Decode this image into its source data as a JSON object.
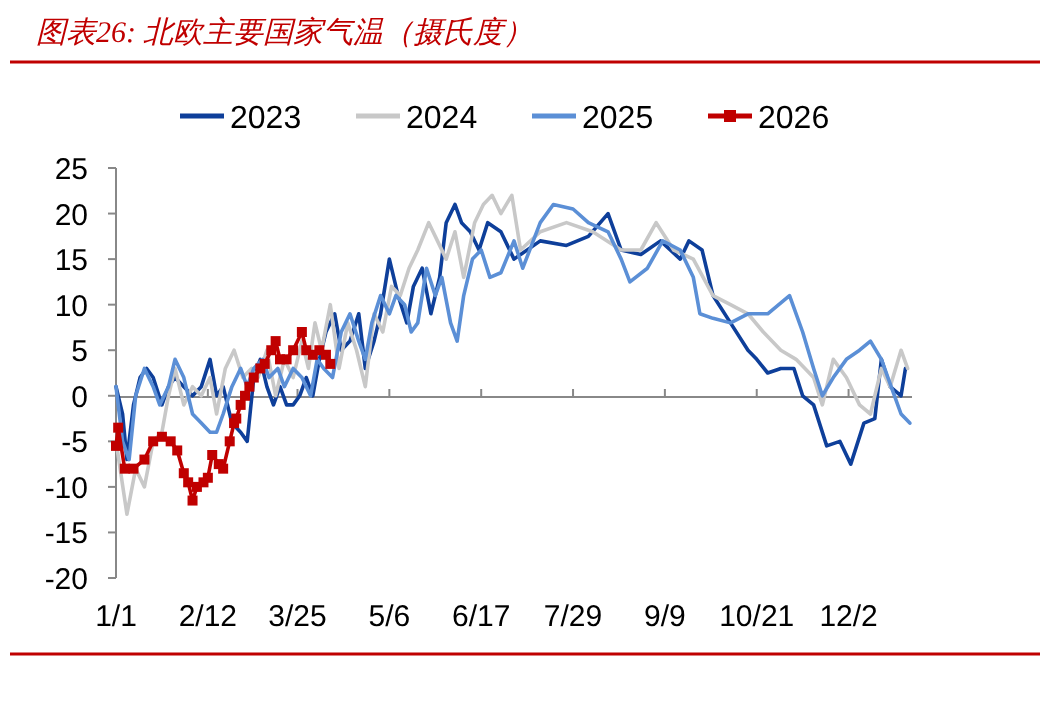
{
  "chart_data": {
    "type": "line",
    "title": "图表26: 北欧主要国家气温（摄氏度）",
    "xlim": [
      "--01-01",
      "--12-31"
    ],
    "xticks": [
      {
        "value": "--01-01",
        "label": "1/1"
      },
      {
        "value": "--02-12",
        "label": "2/12"
      },
      {
        "value": "--03-25",
        "label": "3/25"
      },
      {
        "value": "--05-06",
        "label": "5/6"
      },
      {
        "value": "--06-17",
        "label": "6/17"
      },
      {
        "value": "--07-29",
        "label": "7/29"
      },
      {
        "value": "--09-09",
        "label": "9/9"
      },
      {
        "value": "--10-21",
        "label": "10/21"
      },
      {
        "value": "--12-02",
        "label": "12/2"
      }
    ],
    "ylim": [
      -20,
      25
    ],
    "yticks": [
      -20,
      -15,
      -10,
      -5,
      0,
      5,
      10,
      15,
      20,
      25
    ],
    "legend": "top",
    "line_style": "solid",
    "series": [
      {
        "name": "2023",
        "color": "#0e3f9a",
        "marker": "none",
        "x": [
          "--01-01",
          "--01-04",
          "--01-06",
          "--01-09",
          "--01-12",
          "--01-15",
          "--01-18",
          "--01-22",
          "--01-25",
          "--01-28",
          "--02-01",
          "--02-05",
          "--02-09",
          "--02-13",
          "--02-16",
          "--02-19",
          "--02-23",
          "--02-27",
          "--03-02",
          "--03-05",
          "--03-08",
          "--03-11",
          "--03-14",
          "--03-17",
          "--03-20",
          "--03-23",
          "--03-26",
          "--03-29",
          "--04-01",
          "--04-04",
          "--04-07",
          "--04-11",
          "--04-14",
          "--04-18",
          "--04-22",
          "--04-25",
          "--04-29",
          "--05-02",
          "--05-06",
          "--05-10",
          "--05-14",
          "--05-17",
          "--05-21",
          "--05-25",
          "--05-29",
          "--06-01",
          "--06-05",
          "--06-08",
          "--06-12",
          "--06-16",
          "--06-20",
          "--06-26",
          "--07-02",
          "--07-14",
          "--07-26",
          "--08-05",
          "--08-14",
          "--08-20",
          "--08-29",
          "--09-07",
          "--09-16",
          "--09-20",
          "--09-26",
          "--10-01",
          "--10-09",
          "--10-17",
          "--10-21",
          "--10-26",
          "--11-01",
          "--11-07",
          "--11-11",
          "--11-16",
          "--11-22",
          "--11-28",
          "--12-03",
          "--12-09",
          "--12-14",
          "--12-17",
          "--12-21",
          "--12-26",
          "--12-28"
        ],
        "values": [
          1,
          -2,
          -7,
          -1,
          2,
          3,
          2,
          -1,
          1,
          2,
          1,
          0,
          1,
          4,
          0,
          1,
          -3,
          -4,
          -5,
          2,
          4,
          1,
          -1,
          1,
          -1,
          -1,
          0,
          2,
          0,
          4,
          7,
          9,
          5,
          6,
          9,
          3,
          6,
          9,
          15,
          11,
          8,
          12,
          14,
          9,
          13,
          19,
          21,
          19,
          18,
          16,
          19,
          18,
          15,
          17,
          16.5,
          17.5,
          20,
          16,
          15.5,
          17,
          15,
          17,
          16,
          11,
          8,
          5,
          4,
          2.5,
          3,
          3,
          0,
          -1,
          -5.5,
          -5,
          -7.5,
          -3,
          -2.5,
          4,
          1,
          0,
          3
        ]
      },
      {
        "name": "2024",
        "color": "#c8c8c8",
        "marker": "none",
        "x": [
          "--01-01",
          "--01-06",
          "--01-10",
          "--01-14",
          "--01-18",
          "--01-22",
          "--01-25",
          "--01-28",
          "--02-01",
          "--02-05",
          "--02-09",
          "--02-13",
          "--02-16",
          "--02-20",
          "--02-24",
          "--02-28",
          "--03-04",
          "--03-07",
          "--03-11",
          "--03-15",
          "--03-19",
          "--03-23",
          "--03-27",
          "--03-30",
          "--04-02",
          "--04-05",
          "--04-09",
          "--04-13",
          "--04-17",
          "--04-21",
          "--04-25",
          "--04-29",
          "--05-03",
          "--05-07",
          "--05-11",
          "--05-15",
          "--05-19",
          "--05-24",
          "--05-28",
          "--06-01",
          "--06-05",
          "--06-09",
          "--06-14",
          "--06-18",
          "--06-22",
          "--06-26",
          "--07-01",
          "--07-05",
          "--07-14",
          "--07-26",
          "--08-07",
          "--08-20",
          "--08-29",
          "--09-05",
          "--09-13",
          "--09-22",
          "--10-01",
          "--10-09",
          "--10-17",
          "--10-24",
          "--11-01",
          "--11-08",
          "--11-16",
          "--11-20",
          "--11-25",
          "--12-01",
          "--12-07",
          "--12-12",
          "--12-17",
          "--12-21",
          "--12-26",
          "--12-29"
        ],
        "values": [
          -5,
          -13,
          -8,
          -10,
          -5,
          -4,
          0,
          3,
          -1,
          1,
          0,
          2,
          -2,
          3,
          5,
          2,
          3,
          2,
          5,
          0,
          4,
          2,
          6,
          3,
          8,
          5,
          10,
          3,
          8,
          5,
          1,
          9,
          7,
          12,
          11,
          14,
          16,
          19,
          17,
          15,
          18,
          13,
          19,
          21,
          22,
          20,
          22,
          16,
          18,
          19,
          18,
          16,
          16,
          19,
          16,
          15,
          11,
          10,
          9,
          7,
          5,
          4,
          2,
          -1,
          4,
          2,
          -1,
          -2,
          3,
          1,
          5,
          3
        ]
      },
      {
        "name": "2025",
        "color": "#5b8fd6",
        "marker": "none",
        "x": [
          "--01-01",
          "--01-04",
          "--01-07",
          "--01-10",
          "--01-14",
          "--01-18",
          "--01-21",
          "--01-25",
          "--01-28",
          "--02-01",
          "--02-05",
          "--02-09",
          "--02-13",
          "--02-16",
          "--02-19",
          "--02-23",
          "--02-27",
          "--03-02",
          "--03-05",
          "--03-09",
          "--03-12",
          "--03-16",
          "--03-19",
          "--03-23",
          "--03-27",
          "--03-31",
          "--04-03",
          "--04-06",
          "--04-10",
          "--04-14",
          "--04-18",
          "--04-22",
          "--04-25",
          "--04-28",
          "--05-02",
          "--05-06",
          "--05-09",
          "--05-13",
          "--05-16",
          "--05-19",
          "--05-23",
          "--05-27",
          "--05-30",
          "--06-03",
          "--06-06",
          "--06-09",
          "--06-13",
          "--06-17",
          "--06-21",
          "--06-26",
          "--07-02",
          "--07-06",
          "--07-14",
          "--07-20",
          "--07-29",
          "--08-05",
          "--08-14",
          "--08-20",
          "--08-24",
          "--09-01",
          "--09-08",
          "--09-16",
          "--09-22",
          "--09-25",
          "--10-01",
          "--10-09",
          "--10-17",
          "--10-26",
          "--11-05",
          "--11-11",
          "--11-16",
          "--11-20",
          "--11-25",
          "--12-01",
          "--12-07",
          "--12-12",
          "--12-17",
          "--12-23",
          "--12-26",
          "--12-30"
        ],
        "values": [
          1,
          -5,
          -7,
          0,
          3,
          1,
          -1,
          1,
          4,
          2,
          -2,
          -3,
          -4,
          -4,
          -2,
          1,
          3,
          1,
          3,
          4,
          2,
          3,
          1,
          3,
          2,
          0,
          4,
          3,
          2,
          7,
          9,
          6,
          4,
          8,
          11,
          9,
          11,
          10,
          7,
          8,
          14,
          11,
          13,
          8,
          6,
          11,
          15,
          16,
          13,
          13.5,
          17,
          14,
          19,
          21,
          20.5,
          19,
          18,
          15,
          12.5,
          14,
          17,
          16,
          13,
          9,
          8.5,
          8,
          9,
          9,
          11,
          7,
          3,
          0,
          2,
          4,
          5,
          6,
          4,
          0,
          -2,
          -3
        ]
      },
      {
        "name": "2026",
        "color": "#c00000",
        "marker": "square",
        "x": [
          "--01-01",
          "--01-02",
          "--01-05",
          "--01-09",
          "--01-14",
          "--01-18",
          "--01-22",
          "--01-26",
          "--01-29",
          "--02-01",
          "--02-03",
          "--02-05",
          "--02-07",
          "--02-10",
          "--02-12",
          "--02-14",
          "--02-17",
          "--02-19",
          "--02-22",
          "--02-24",
          "--02-25",
          "--02-27",
          "--03-01",
          "--03-03",
          "--03-05",
          "--03-08",
          "--03-10",
          "--03-13",
          "--03-15",
          "--03-17",
          "--03-20",
          "--03-23",
          "--03-27",
          "--03-29",
          "--04-01",
          "--04-04",
          "--04-07",
          "--04-09"
        ],
        "values": [
          -5.5,
          -3.5,
          -8,
          -8,
          -7,
          -5,
          -4.5,
          -5,
          -6,
          -8.5,
          -9.5,
          -11.5,
          -10,
          -9.5,
          -9,
          -6.5,
          -7.5,
          -8,
          -5,
          -3,
          -2.5,
          -1,
          0,
          1,
          2,
          3,
          3.5,
          5,
          6,
          4,
          4,
          5,
          7,
          5,
          4.5,
          5,
          4.5,
          3.5
        ]
      }
    ]
  }
}
